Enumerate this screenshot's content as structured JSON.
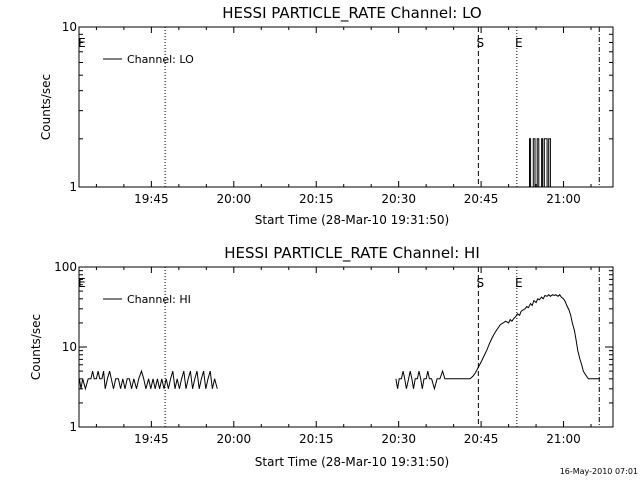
{
  "footer": "16-May-2010 07:01",
  "chart_data": [
    {
      "type": "line",
      "title": "HESSI PARTICLE_RATE Channel: LO",
      "xlabel": "Start Time (28-Mar-10 19:31:50)",
      "ylabel": "Counts/sec",
      "x_ticks": [
        "19:45",
        "20:00",
        "20:15",
        "20:30",
        "20:45",
        "21:00"
      ],
      "x_tick_minutes": [
        705,
        720,
        735,
        750,
        765,
        780
      ],
      "xlim_minutes": [
        691.83,
        789.0
      ],
      "yscale": "log",
      "ylim": [
        1,
        10
      ],
      "y_ticks": [
        "1",
        "10"
      ],
      "legend_label": "Channel: LO",
      "legend_position": "top-left",
      "markers": [
        {
          "label": "E",
          "minute": 692.0,
          "style": "dotted",
          "line": false
        },
        {
          "label": "",
          "minute": 707.5,
          "style": "dotted",
          "line": true
        },
        {
          "label": "S",
          "minute": 764.5,
          "style": "dashed",
          "line": true
        },
        {
          "label": "E",
          "minute": 771.5,
          "style": "dotted",
          "line": true
        },
        {
          "label": "",
          "minute": 786.5,
          "style": "dashdot",
          "line": true
        }
      ],
      "series": [
        {
          "segments": [
            [
              [
                773.5,
                1
              ],
              [
                773.8,
                1
              ],
              [
                773.8,
                2
              ],
              [
                774.0,
                2
              ],
              [
                774.0,
                1
              ],
              [
                774.5,
                1
              ],
              [
                774.5,
                2
              ],
              [
                774.8,
                2
              ],
              [
                774.8,
                1
              ],
              [
                775.2,
                1
              ],
              [
                775.2,
                2
              ],
              [
                775.5,
                2
              ],
              [
                775.5,
                1
              ],
              [
                776.0,
                1
              ],
              [
                776.0,
                2
              ],
              [
                776.2,
                2
              ],
              [
                776.2,
                1
              ],
              [
                776.5,
                1
              ],
              [
                776.5,
                2
              ],
              [
                777.0,
                2
              ],
              [
                777.0,
                1
              ],
              [
                777.3,
                1
              ],
              [
                777.3,
                2
              ],
              [
                777.6,
                2
              ],
              [
                777.6,
                1
              ],
              [
                777.8,
                1
              ]
            ]
          ]
        }
      ]
    },
    {
      "type": "line",
      "title": "HESSI PARTICLE_RATE Channel: HI",
      "xlabel": "Start Time (28-Mar-10 19:31:50)",
      "ylabel": "Counts/sec",
      "x_ticks": [
        "19:45",
        "20:00",
        "20:15",
        "20:30",
        "20:45",
        "21:00"
      ],
      "x_tick_minutes": [
        705,
        720,
        735,
        750,
        765,
        780
      ],
      "xlim_minutes": [
        691.83,
        789.0
      ],
      "yscale": "log",
      "ylim": [
        1,
        100
      ],
      "y_ticks": [
        "1",
        "10",
        "100"
      ],
      "legend_label": "Channel: HI",
      "legend_position": "top-left",
      "markers": [
        {
          "label": "E",
          "minute": 692.0,
          "style": "dotted",
          "line": false
        },
        {
          "label": "",
          "minute": 707.5,
          "style": "dotted",
          "line": true
        },
        {
          "label": "S",
          "minute": 764.5,
          "style": "dashed",
          "line": true
        },
        {
          "label": "E",
          "minute": 771.5,
          "style": "dotted",
          "line": true
        },
        {
          "label": "",
          "minute": 786.5,
          "style": "dashdot",
          "line": true
        }
      ],
      "series": [
        {
          "segments": [
            [
              [
                691.9,
                4
              ],
              [
                692.2,
                3
              ],
              [
                692.5,
                4
              ],
              [
                693.0,
                3
              ],
              [
                693.5,
                4
              ],
              [
                694.0,
                4
              ],
              [
                694.3,
                5
              ],
              [
                694.6,
                4
              ],
              [
                695.0,
                4
              ],
              [
                695.3,
                5
              ],
              [
                695.6,
                4
              ],
              [
                696.0,
                4
              ],
              [
                696.3,
                5
              ],
              [
                696.6,
                3
              ],
              [
                697.0,
                4
              ],
              [
                697.4,
                5
              ],
              [
                697.7,
                4
              ],
              [
                698.1,
                3
              ],
              [
                698.5,
                4
              ],
              [
                699.0,
                4
              ],
              [
                699.4,
                3
              ],
              [
                699.8,
                4
              ],
              [
                700.2,
                3
              ],
              [
                700.6,
                4
              ],
              [
                701.0,
                4
              ],
              [
                701.4,
                3
              ],
              [
                701.8,
                4
              ],
              [
                702.3,
                3
              ],
              [
                702.7,
                4
              ],
              [
                703.2,
                5
              ],
              [
                703.6,
                4
              ],
              [
                704.0,
                3
              ],
              [
                704.5,
                4
              ],
              [
                704.9,
                3
              ],
              [
                705.3,
                4
              ],
              [
                705.7,
                3
              ],
              [
                706.1,
                4
              ],
              [
                706.5,
                3
              ],
              [
                706.9,
                4
              ],
              [
                707.3,
                3
              ],
              [
                707.7,
                4
              ],
              [
                708.1,
                3
              ],
              [
                708.5,
                4
              ],
              [
                708.9,
                5
              ],
              [
                709.3,
                3
              ],
              [
                709.7,
                4
              ],
              [
                710.1,
                3
              ],
              [
                710.5,
                4
              ],
              [
                710.9,
                5
              ],
              [
                711.3,
                3
              ],
              [
                711.7,
                4
              ],
              [
                712.1,
                5
              ],
              [
                712.5,
                3
              ],
              [
                712.9,
                4
              ],
              [
                713.3,
                5
              ],
              [
                713.7,
                3
              ],
              [
                714.1,
                4
              ],
              [
                714.5,
                5
              ],
              [
                714.9,
                3
              ],
              [
                715.3,
                4
              ],
              [
                715.7,
                5
              ],
              [
                716.1,
                3
              ],
              [
                716.5,
                4
              ],
              [
                717.0,
                3
              ]
            ],
            [
              [
                749.5,
                4
              ],
              [
                749.8,
                3
              ],
              [
                750.1,
                4
              ],
              [
                750.5,
                4
              ],
              [
                750.8,
                5
              ],
              [
                751.1,
                4
              ],
              [
                751.4,
                3
              ],
              [
                751.8,
                4
              ],
              [
                752.1,
                5
              ],
              [
                752.4,
                4
              ],
              [
                752.7,
                3
              ],
              [
                753.0,
                4
              ],
              [
                753.4,
                4
              ],
              [
                753.7,
                5
              ],
              [
                754.0,
                4
              ],
              [
                754.3,
                3
              ],
              [
                754.6,
                4
              ],
              [
                755.0,
                4
              ],
              [
                755.3,
                5
              ],
              [
                755.6,
                4
              ],
              [
                756.0,
                4
              ],
              [
                756.5,
                3
              ],
              [
                757.0,
                4
              ],
              [
                757.5,
                4
              ],
              [
                758.0,
                5
              ],
              [
                758.4,
                4
              ],
              [
                758.8,
                4
              ],
              [
                759.2,
                4
              ],
              [
                759.6,
                4
              ],
              [
                760.0,
                4
              ],
              [
                760.5,
                4
              ],
              [
                761.0,
                4
              ],
              [
                761.5,
                4
              ],
              [
                762.0,
                4
              ],
              [
                762.5,
                4
              ],
              [
                763.0,
                4
              ],
              [
                763.5,
                4.3
              ],
              [
                764.0,
                4.8
              ],
              [
                764.5,
                5.6
              ],
              [
                765.0,
                6.5
              ],
              [
                765.5,
                7.7
              ],
              [
                766.0,
                9.0
              ],
              [
                766.5,
                11.0
              ],
              [
                767.0,
                13.0
              ],
              [
                767.5,
                15.0
              ],
              [
                768.0,
                17.0
              ],
              [
                768.5,
                19.0
              ],
              [
                769.0,
                20.0
              ],
              [
                769.5,
                21.0
              ],
              [
                770.0,
                20.0
              ],
              [
                770.3,
                22.0
              ],
              [
                770.6,
                21.0
              ],
              [
                771.0,
                23.0
              ],
              [
                771.3,
                24.0
              ],
              [
                771.6,
                26.0
              ],
              [
                772.0,
                25.0
              ],
              [
                772.3,
                28.0
              ],
              [
                772.6,
                29.0
              ],
              [
                773.0,
                30.0
              ],
              [
                773.3,
                32.0
              ],
              [
                773.6,
                31.0
              ],
              [
                774.0,
                35.0
              ],
              [
                774.3,
                33.0
              ],
              [
                774.6,
                38.0
              ],
              [
                775.0,
                36.0
              ],
              [
                775.3,
                40.0
              ],
              [
                775.6,
                39.0
              ],
              [
                776.0,
                42.0
              ],
              [
                776.3,
                40.0
              ],
              [
                776.6,
                44.0
              ],
              [
                777.0,
                43.0
              ],
              [
                777.3,
                45.0
              ],
              [
                777.6,
                43.0
              ],
              [
                778.0,
                45.0
              ],
              [
                778.3,
                44.0
              ],
              [
                778.6,
                45.0
              ],
              [
                779.0,
                43.0
              ],
              [
                779.3,
                45.0
              ],
              [
                779.6,
                42.0
              ],
              [
                780.0,
                40.0
              ],
              [
                780.3,
                37.0
              ],
              [
                780.6,
                33.0
              ],
              [
                781.0,
                29.0
              ],
              [
                781.3,
                25.0
              ],
              [
                781.6,
                20.0
              ],
              [
                782.0,
                16.0
              ],
              [
                782.3,
                12.0
              ],
              [
                782.6,
                9.0
              ],
              [
                783.0,
                7.0
              ],
              [
                783.3,
                6.0
              ],
              [
                783.6,
                5.0
              ],
              [
                784.0,
                4.5
              ],
              [
                784.5,
                4.0
              ],
              [
                785.0,
                4.0
              ],
              [
                785.5,
                4.0
              ],
              [
                786.0,
                4.0
              ],
              [
                786.3,
                4.0
              ],
              [
                786.6,
                4.0
              ]
            ]
          ]
        }
      ]
    }
  ]
}
